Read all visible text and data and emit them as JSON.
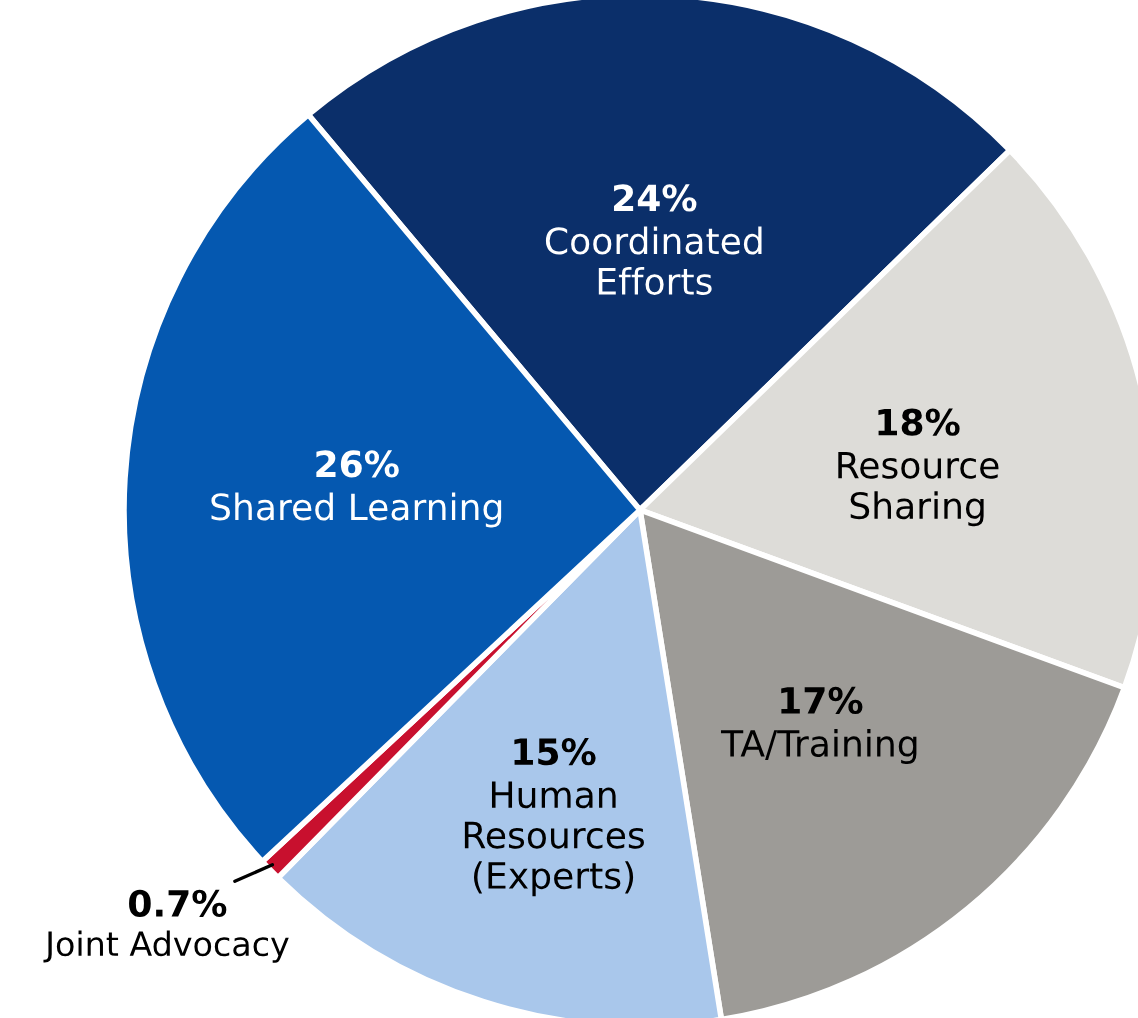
{
  "chart_data": {
    "type": "pie",
    "categories": [
      "Coordinated Efforts",
      "Resource Sharing",
      "TA/Training",
      "Human Resources (Experts)",
      "Joint Advocacy",
      "Shared Learning"
    ],
    "values": [
      24,
      18,
      17,
      15,
      0.7,
      26
    ],
    "colors": [
      "#0b2f6a",
      "#dddcd8",
      "#9d9b97",
      "#a9c7eb",
      "#c8102e",
      "#0558b0"
    ],
    "value_labels": [
      "24%",
      "18%",
      "17%",
      "15%",
      "0.7%",
      "26%"
    ]
  }
}
